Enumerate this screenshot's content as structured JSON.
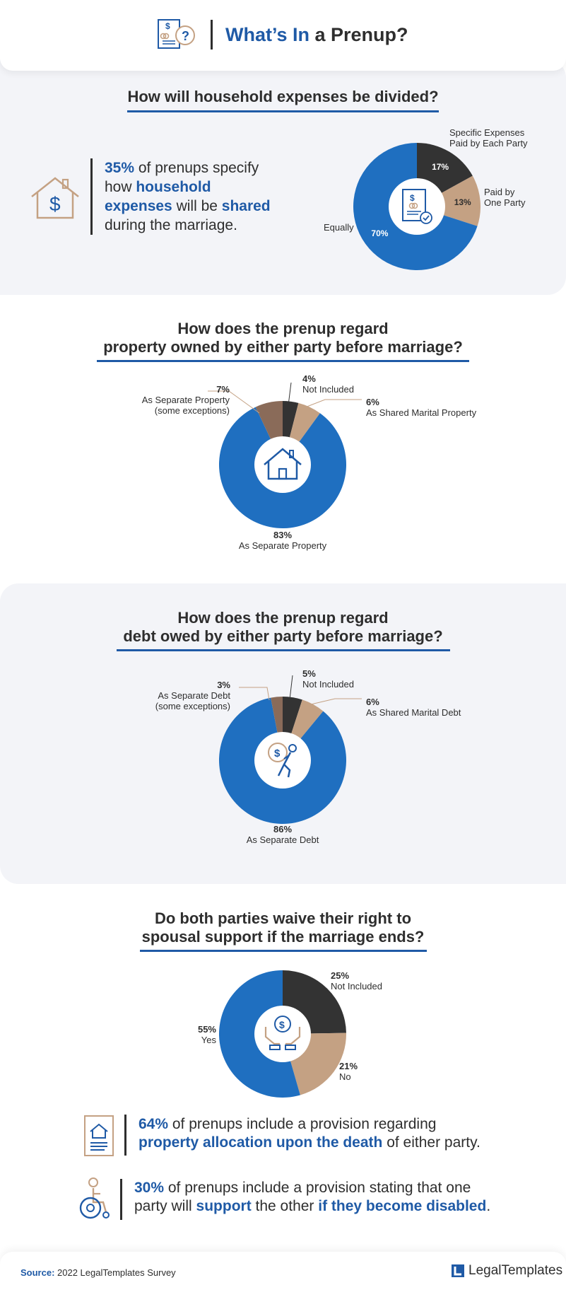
{
  "header": {
    "title_accent": "What’s In",
    "title_rest": " a Prenup?",
    "icon": "document-dollar-question-icon"
  },
  "section1": {
    "question": "How will household expenses be divided?",
    "icon": "house-dollar-icon",
    "stat": {
      "pct": "35%",
      "t1": " of prenups specify how ",
      "h1": "household expenses",
      "t2": " will be ",
      "h2": "shared",
      "t3": " during the marriage."
    },
    "center_icon": "document-rings-check-icon"
  },
  "section2": {
    "question_line1": "How does the prenup regard",
    "question_line2": "property owned by either party before marriage?",
    "center_icon": "house-icon"
  },
  "section3": {
    "question_line1": "How does the prenup regard",
    "question_line2": "debt owed by either party before marriage?",
    "center_icon": "person-carrying-debt-icon"
  },
  "section4": {
    "question_line1": "Do both parties waive their right to",
    "question_line2": "spousal support if the marriage ends?",
    "center_icon": "hands-coin-icon",
    "stat1": {
      "icon": "document-house-icon",
      "pct": "64%",
      "t1": " of prenups include a provision regarding",
      "h1": "property allocation upon the death",
      "t2": " of either party."
    },
    "stat2": {
      "icon": "wheelchair-icon",
      "pct": "30%",
      "t1": " of prenups include a provision stating that one",
      "t2": "party will ",
      "h1": "support",
      "t3": " the other ",
      "h2": "if they become disabled",
      "t4": "."
    }
  },
  "footer": {
    "source_label": "Source:",
    "source_text": " 2022 LegalTemplates Survey",
    "brand": "LegalTemplates",
    "brand_icon": "legaltemplates-logo-icon"
  },
  "colors": {
    "blue": "#1f6fc0",
    "dark": "#333333",
    "tan": "#c4a183",
    "brown": "#8a6b59",
    "accent": "#1f5aa6"
  },
  "chart_data": [
    {
      "type": "pie",
      "donut": true,
      "labels": [
        "Specific Expenses Paid by Each Party",
        "Paid by One Party",
        "Equally"
      ],
      "values": [
        17,
        13,
        70
      ],
      "value_labels": [
        "17%",
        "13%",
        "70%"
      ],
      "colors": [
        "#333333",
        "#c4a183",
        "#1f6fc0"
      ]
    },
    {
      "type": "pie",
      "donut": true,
      "labels": [
        "Not Included",
        "As Shared Marital Property",
        "As Separate Property",
        "As Separate Property (some exceptions)"
      ],
      "values": [
        4,
        6,
        83,
        7
      ],
      "value_labels": [
        "4%",
        "6%",
        "83%",
        "7%"
      ],
      "colors": [
        "#333333",
        "#c4a183",
        "#1f6fc0",
        "#8a6b59"
      ]
    },
    {
      "type": "pie",
      "donut": true,
      "labels": [
        "Not Included",
        "As Shared Marital Debt",
        "As Separate Debt",
        "As Separate Debt (some exceptions)"
      ],
      "values": [
        5,
        6,
        86,
        3
      ],
      "value_labels": [
        "5%",
        "6%",
        "86%",
        "3%"
      ],
      "colors": [
        "#333333",
        "#c4a183",
        "#1f6fc0",
        "#8a6b59"
      ]
    },
    {
      "type": "pie",
      "donut": true,
      "labels": [
        "Not Included",
        "No",
        "Yes"
      ],
      "values": [
        25,
        21,
        55
      ],
      "value_labels": [
        "25%",
        "21%",
        "55%"
      ],
      "colors": [
        "#333333",
        "#c4a183",
        "#1f6fc0"
      ]
    }
  ]
}
